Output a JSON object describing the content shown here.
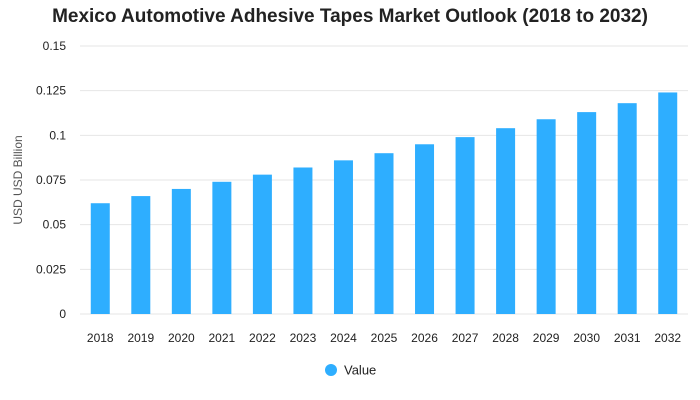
{
  "chart_data": {
    "type": "bar",
    "title": "Mexico Automotive Adhesive Tapes Market Outlook (2018 to 2032)",
    "xlabel": "",
    "ylabel": "USD USD Billion",
    "categories": [
      "2018",
      "2019",
      "2020",
      "2021",
      "2022",
      "2023",
      "2024",
      "2025",
      "2026",
      "2027",
      "2028",
      "2029",
      "2030",
      "2031",
      "2032"
    ],
    "series": [
      {
        "name": "Value",
        "values": [
          0.062,
          0.066,
          0.07,
          0.074,
          0.078,
          0.082,
          0.086,
          0.09,
          0.095,
          0.099,
          0.104,
          0.109,
          0.113,
          0.118,
          0.124
        ]
      }
    ],
    "ylim": [
      0,
      0.15
    ],
    "yticks": [
      "0",
      "0.025",
      "0.05",
      "0.075",
      "0.1",
      "0.125",
      "0.15"
    ],
    "grid": true,
    "legend_position": "bottom",
    "colors": {
      "bar": "#2EAEFF",
      "grid": "#e6e6e6",
      "text": "#222222"
    }
  }
}
